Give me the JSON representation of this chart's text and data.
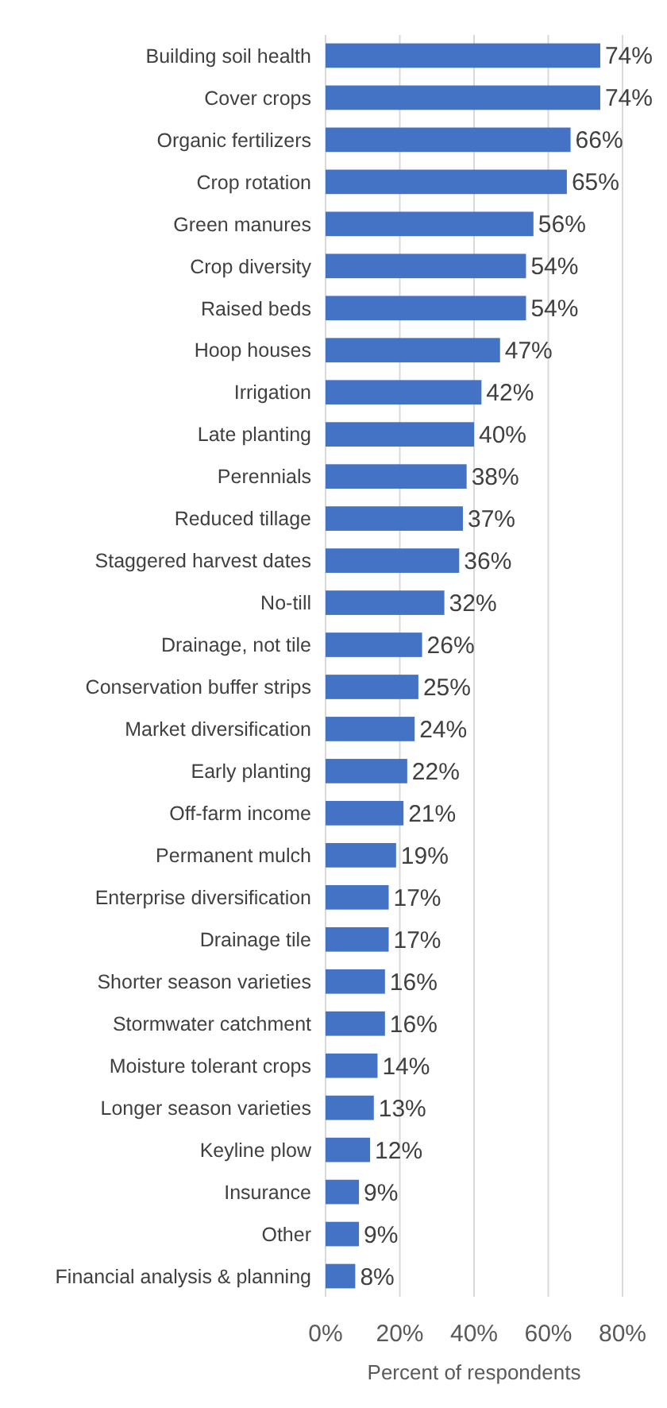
{
  "chart_data": {
    "type": "bar",
    "orientation": "horizontal",
    "xlabel": "Percent of respondents",
    "categories": [
      "Building soil health",
      "Cover crops",
      "Organic fertilizers",
      "Crop rotation",
      "Green manures",
      "Crop diversity",
      "Raised beds",
      "Hoop houses",
      "Irrigation",
      "Late planting",
      "Perennials",
      "Reduced tillage",
      "Staggered harvest dates",
      "No-till",
      "Drainage, not tile",
      "Conservation buffer strips",
      "Market diversification",
      "Early planting",
      "Off-farm income",
      "Permanent mulch",
      "Enterprise diversification",
      "Drainage tile",
      "Shorter season varieties",
      "Stormwater catchment",
      "Moisture tolerant crops",
      "Longer season varieties",
      "Keyline plow",
      "Insurance",
      "Other",
      "Financial analysis & planning"
    ],
    "values": [
      74,
      74,
      66,
      65,
      56,
      54,
      54,
      47,
      42,
      40,
      38,
      37,
      36,
      32,
      26,
      25,
      24,
      22,
      21,
      19,
      17,
      17,
      16,
      16,
      14,
      13,
      12,
      9,
      9,
      8
    ],
    "value_labels": [
      "74%",
      "74%",
      "66%",
      "65%",
      "56%",
      "54%",
      "54%",
      "47%",
      "42%",
      "40%",
      "38%",
      "37%",
      "36%",
      "32%",
      "26%",
      "25%",
      "24%",
      "22%",
      "21%",
      "19%",
      "17%",
      "17%",
      "16%",
      "16%",
      "14%",
      "13%",
      "12%",
      "9%",
      "9%",
      "8%"
    ],
    "color": "#4472c4",
    "xlim": [
      0,
      80
    ],
    "xticks": [
      {
        "value": 0,
        "label": "0%"
      },
      {
        "value": 20,
        "label": "20%"
      },
      {
        "value": 40,
        "label": "40%"
      },
      {
        "value": 60,
        "label": "60%"
      },
      {
        "value": 80,
        "label": "80%"
      }
    ],
    "grid": "x"
  }
}
